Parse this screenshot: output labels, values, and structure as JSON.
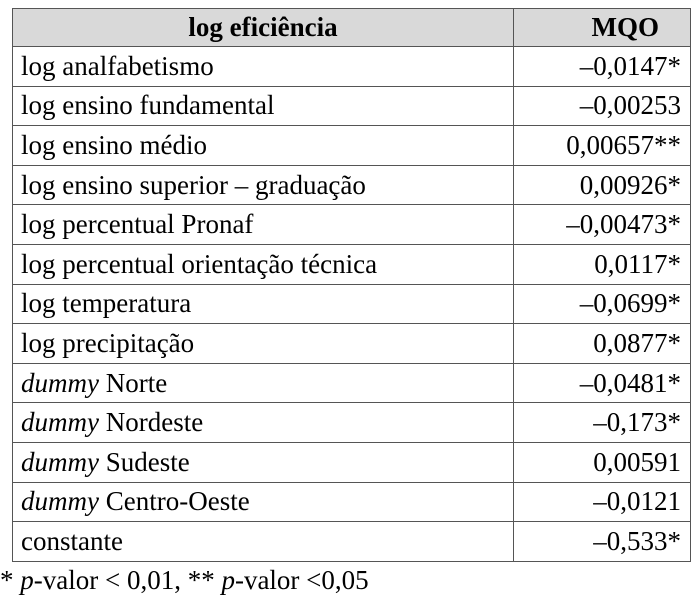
{
  "table": {
    "headers": [
      "log eficiência",
      "MQO"
    ],
    "rows": [
      {
        "prefix": "",
        "label": "log analfabetismo",
        "value": "–0,0147*"
      },
      {
        "prefix": "",
        "label": "log ensino fundamental",
        "value": "–0,00253"
      },
      {
        "prefix": "",
        "label": "log ensino médio",
        "value": "0,00657**"
      },
      {
        "prefix": "",
        "label": "log ensino superior – graduação",
        "value": "0,00926*"
      },
      {
        "prefix": "",
        "label": "log percentual Pronaf",
        "value": "–0,00473*"
      },
      {
        "prefix": "",
        "label": "log percentual orientação técnica",
        "value": "0,0117*"
      },
      {
        "prefix": "",
        "label": "log temperatura",
        "value": "–0,0699*"
      },
      {
        "prefix": "",
        "label": "log precipitação",
        "value": "0,0877*"
      },
      {
        "prefix": "dummy",
        "label": " Norte",
        "value": "–0,0481*"
      },
      {
        "prefix": "dummy",
        "label": " Nordeste",
        "value": "–0,173*"
      },
      {
        "prefix": "dummy",
        "label": " Sudeste",
        "value": "0,00591"
      },
      {
        "prefix": "dummy",
        "label": " Centro-Oeste",
        "value": "–0,0121"
      },
      {
        "prefix": "",
        "label": "constante",
        "value": "–0,533*"
      }
    ]
  },
  "footnote": {
    "part1": "* ",
    "p1": "p",
    "part2": "-valor < 0,01, ** ",
    "p2": "p",
    "part3": "-valor <0,05"
  }
}
